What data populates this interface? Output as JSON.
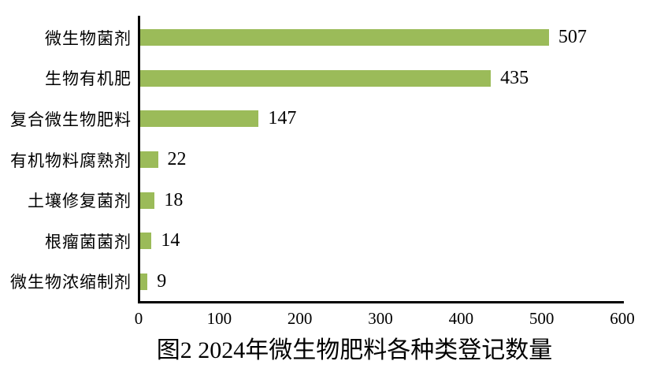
{
  "chart_data": {
    "type": "bar",
    "orientation": "horizontal",
    "title": "图2 2024年微生物肥料各种类登记数量",
    "categories": [
      "微生物菌剂",
      "生物有机肥",
      "复合微生物肥料",
      "有机物料腐熟剂",
      "土壤修复菌剂",
      "根瘤菌菌剂",
      "微生物浓缩制剂"
    ],
    "values": [
      507,
      435,
      147,
      22,
      18,
      14,
      9
    ],
    "xlabel": "",
    "ylabel": "",
    "xlim": [
      0,
      600
    ],
    "x_ticks": [
      0,
      100,
      200,
      300,
      400,
      500,
      600
    ],
    "grid": false,
    "legend": false,
    "value_labels": true,
    "bar_color": "#9BBB59",
    "axis_color": "#000000",
    "text_color": "#000000",
    "background_color": "#ffffff"
  }
}
